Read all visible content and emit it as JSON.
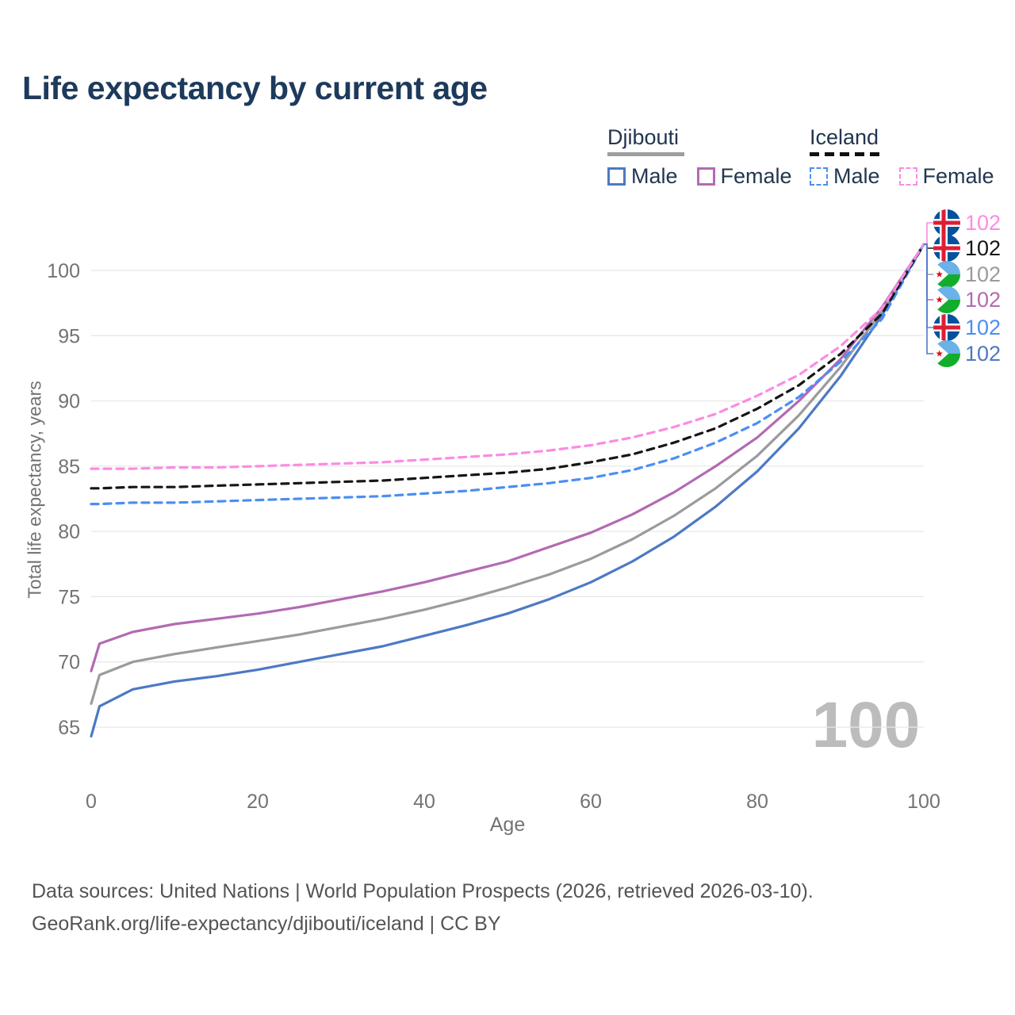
{
  "header": {
    "title": "Life expectancy by current age"
  },
  "legend": {
    "groups": [
      {
        "label": "Djibouti",
        "line_style": "solid",
        "underline_color": "#9e9e9e",
        "items": [
          {
            "label": "Male",
            "color": "#4d79c4"
          },
          {
            "label": "Female",
            "color": "#b36ab3"
          }
        ]
      },
      {
        "label": "Iceland",
        "line_style": "dashed",
        "underline_color": "#111111",
        "items": [
          {
            "label": "Male",
            "color": "#4a8ef5"
          },
          {
            "label": "Female",
            "color": "#fc8be2"
          }
        ]
      }
    ]
  },
  "chart_data": {
    "type": "line",
    "title": "Life expectancy by current age",
    "xlabel": "Age",
    "ylabel": "Total life expectancy, years",
    "xlim": [
      0,
      100
    ],
    "ylim": [
      63,
      103
    ],
    "x_ticks": [
      0,
      20,
      40,
      60,
      80,
      100
    ],
    "y_ticks": [
      65,
      70,
      75,
      80,
      85,
      90,
      95,
      100
    ],
    "grid": "horizontal-only",
    "grid_color": "#e8e8e8",
    "tick_color": "#737373",
    "watermark": "100",
    "x": [
      0,
      1,
      5,
      10,
      15,
      20,
      25,
      30,
      35,
      40,
      45,
      50,
      55,
      60,
      65,
      70,
      75,
      80,
      85,
      90,
      95,
      100
    ],
    "series": [
      {
        "id": "djibouti-male",
        "name": "Djibouti Male",
        "color": "#4d79c4",
        "dash": false,
        "values": [
          64.3,
          66.6,
          67.9,
          68.5,
          68.9,
          69.4,
          70.0,
          70.6,
          71.2,
          72.0,
          72.8,
          73.7,
          74.8,
          76.1,
          77.7,
          79.6,
          81.9,
          84.6,
          87.9,
          91.9,
          96.6,
          102
        ]
      },
      {
        "id": "djibouti-both",
        "name": "Djibouti",
        "color": "#9b9b9b",
        "dash": false,
        "values": [
          66.8,
          69.0,
          70.0,
          70.6,
          71.1,
          71.6,
          72.1,
          72.7,
          73.3,
          74.0,
          74.8,
          75.7,
          76.7,
          77.9,
          79.4,
          81.2,
          83.3,
          85.8,
          88.9,
          92.6,
          96.9,
          102
        ]
      },
      {
        "id": "djibouti-female",
        "name": "Djibouti Female",
        "color": "#b36ab3",
        "dash": false,
        "values": [
          69.3,
          71.4,
          72.3,
          72.9,
          73.3,
          73.7,
          74.2,
          74.8,
          75.4,
          76.1,
          76.9,
          77.7,
          78.8,
          79.9,
          81.3,
          83.0,
          85.0,
          87.2,
          90.0,
          93.2,
          97.2,
          102
        ]
      },
      {
        "id": "iceland-male",
        "name": "Iceland Male",
        "color": "#4a8ef5",
        "dash": true,
        "values": [
          82.1,
          82.1,
          82.2,
          82.2,
          82.3,
          82.4,
          82.5,
          82.6,
          82.7,
          82.9,
          83.1,
          83.4,
          83.7,
          84.1,
          84.7,
          85.6,
          86.8,
          88.3,
          90.3,
          93.0,
          96.3,
          102
        ]
      },
      {
        "id": "iceland-both",
        "name": "Iceland",
        "color": "#161616",
        "dash": true,
        "values": [
          83.3,
          83.3,
          83.4,
          83.4,
          83.5,
          83.6,
          83.7,
          83.8,
          83.9,
          84.1,
          84.3,
          84.5,
          84.8,
          85.3,
          85.9,
          86.8,
          87.9,
          89.4,
          91.2,
          93.6,
          96.7,
          102
        ]
      },
      {
        "id": "iceland-female",
        "name": "Iceland Female",
        "color": "#fc8be2",
        "dash": true,
        "values": [
          84.8,
          84.8,
          84.8,
          84.9,
          84.9,
          85.0,
          85.1,
          85.2,
          85.3,
          85.5,
          85.7,
          85.9,
          86.2,
          86.6,
          87.2,
          88.0,
          89.0,
          90.4,
          92.0,
          94.2,
          97.1,
          102
        ]
      }
    ],
    "end_labels": [
      {
        "flag": "iceland",
        "series": "Iceland Female",
        "value": "102",
        "color": "#fc8be2"
      },
      {
        "flag": "iceland",
        "series": "Iceland",
        "value": "102",
        "color": "#161616"
      },
      {
        "flag": "djibouti",
        "series": "Djibouti",
        "value": "102",
        "color": "#9b9b9b"
      },
      {
        "flag": "djibouti",
        "series": "Djibouti Female",
        "value": "102",
        "color": "#b36ab3"
      },
      {
        "flag": "iceland",
        "series": "Iceland Male",
        "value": "102",
        "color": "#4a8ef5"
      },
      {
        "flag": "djibouti",
        "series": "Djibouti Male",
        "value": "102",
        "color": "#4d79c4"
      }
    ]
  },
  "footer": {
    "line1": "Data sources: United Nations | World Population Prospects (2026, retrieved 2026-03-10).",
    "line2": "GeoRank.org/life-expectancy/djibouti/iceland | CC BY"
  }
}
